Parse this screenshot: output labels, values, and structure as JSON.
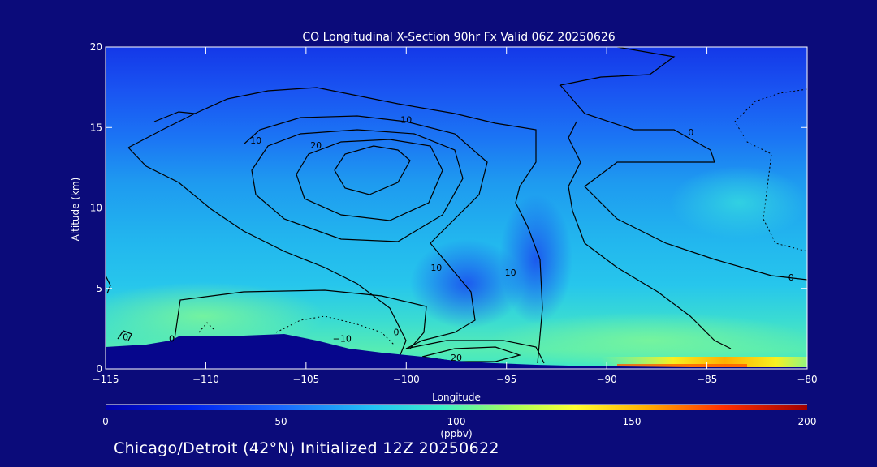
{
  "chart_data": {
    "type": "heatmap",
    "title": "CO Longitudinal X-Section 90hr  Fx Valid 06Z 20250626",
    "xlabel": "Longitude",
    "ylabel": "Altitude (km)",
    "xlim": [
      -115,
      -80
    ],
    "ylim": [
      0,
      20
    ],
    "x_ticks": [
      -115,
      -110,
      -105,
      -100,
      -95,
      -90,
      -85,
      -80
    ],
    "x_tick_labels": [
      "−115",
      "−110",
      "−105",
      "−100",
      "−95",
      "−90",
      "−85",
      "−80"
    ],
    "y_ticks": [
      0,
      5,
      10,
      15,
      20
    ],
    "y_tick_labels": [
      "0",
      "5",
      "10",
      "15",
      "20"
    ],
    "colorbar": {
      "min": 0,
      "max": 200,
      "ticks": [
        0,
        50,
        100,
        150,
        200
      ],
      "tick_labels": [
        "0",
        "50",
        "100",
        "150",
        "200"
      ],
      "unit_label": "(ppbv)"
    },
    "field_bands": [
      {
        "alt_range": [
          17,
          20
        ],
        "co_ppbv": 20
      },
      {
        "alt_range": [
          14,
          17
        ],
        "co_ppbv": 35
      },
      {
        "alt_range": [
          10,
          14
        ],
        "co_ppbv": 60
      },
      {
        "alt_range": [
          6,
          10
        ],
        "co_ppbv": 70
      },
      {
        "alt_range": [
          3,
          6
        ],
        "co_ppbv": 90
      },
      {
        "alt_range": [
          0.5,
          3
        ],
        "co_ppbv": 95
      }
    ],
    "surface_max": {
      "lon": [
        -88,
        -81
      ],
      "alt_km": 0.5,
      "co_ppbv": 140
    },
    "contour_labels": [
      {
        "text": "10",
        "lon": -100,
        "alt": 15.5
      },
      {
        "text": "10",
        "lon": -107.5,
        "alt": 14.2
      },
      {
        "text": "20",
        "lon": -104.5,
        "alt": 13.9
      },
      {
        "text": "0",
        "lon": -85.8,
        "alt": 14.7
      },
      {
        "text": "10",
        "lon": -98.5,
        "alt": 6.3
      },
      {
        "text": "10",
        "lon": -94.8,
        "alt": 6.0
      },
      {
        "text": "0",
        "lon": -80.8,
        "alt": 5.7
      },
      {
        "text": "0",
        "lon": -114,
        "alt": 2.0
      },
      {
        "text": "0",
        "lon": -111.7,
        "alt": 1.9
      },
      {
        "text": "−10",
        "lon": -103.2,
        "alt": 1.9
      },
      {
        "text": "0",
        "lon": -100.5,
        "alt": 2.3
      },
      {
        "text": "20",
        "lon": -97.5,
        "alt": 0.7
      }
    ]
  },
  "footer_text": "Chicago/Detroit (42°N) Initialized 12Z 20250622",
  "colors": {
    "background": "#0b0b7a",
    "terrain": "#06068c",
    "contour": "#000000"
  }
}
